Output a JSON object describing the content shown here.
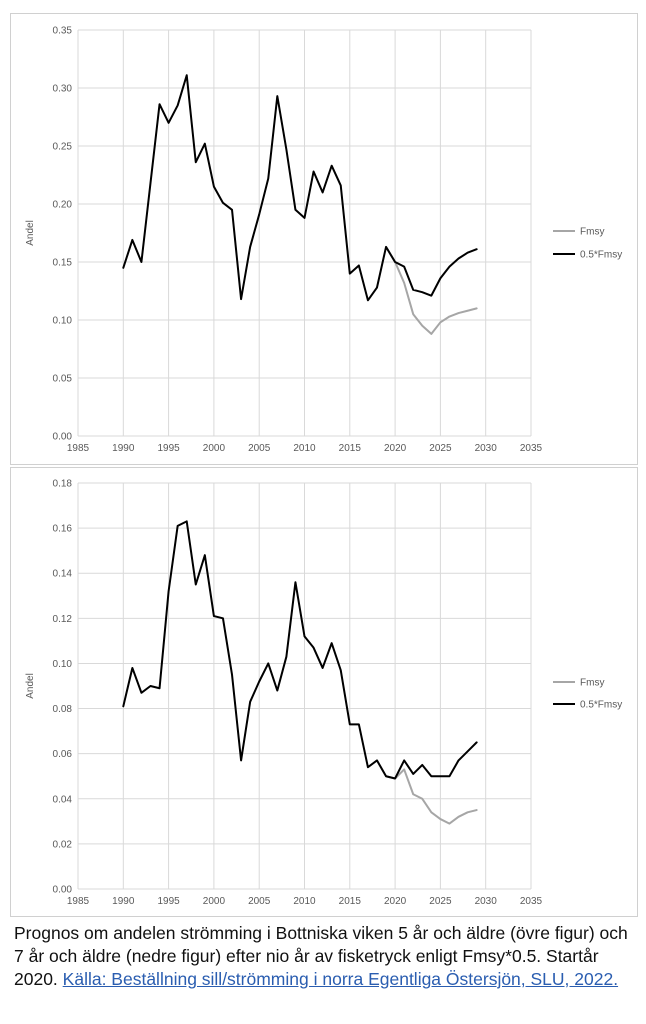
{
  "charts": [
    {
      "ylabel": "Andel",
      "ylim": [
        0,
        0.35
      ],
      "yticks": [
        "0.00",
        "0.05",
        "0.10",
        "0.15",
        "0.20",
        "0.25",
        "0.30",
        "0.35"
      ],
      "xlim": [
        1985,
        2035
      ],
      "xticks": [
        "1985",
        "1990",
        "1995",
        "2000",
        "2005",
        "2010",
        "2015",
        "2020",
        "2025",
        "2030",
        "2035"
      ],
      "legend": [
        "Fmsy",
        "0.5*Fmsy"
      ]
    },
    {
      "ylabel": "Andel",
      "ylim": [
        0,
        0.18
      ],
      "yticks": [
        "0.00",
        "0.02",
        "0.04",
        "0.06",
        "0.08",
        "0.10",
        "0.12",
        "0.14",
        "0.16",
        "0.18"
      ],
      "xlim": [
        1985,
        2035
      ],
      "xticks": [
        "1985",
        "1990",
        "1995",
        "2000",
        "2005",
        "2010",
        "2015",
        "2020",
        "2025",
        "2030",
        "2035"
      ],
      "legend": [
        "Fmsy",
        "0.5*Fmsy"
      ]
    }
  ],
  "chart_data": [
    {
      "type": "line",
      "ylabel": "Andel",
      "xlim": [
        1985,
        2035
      ],
      "ylim": [
        0,
        0.35
      ],
      "grid": true,
      "legend_position": "right",
      "series": [
        {
          "name": "Fmsy",
          "color": "#a6a6a6",
          "x": [
            2019,
            2020,
            2021,
            2022,
            2023,
            2024,
            2025,
            2026,
            2027,
            2028,
            2029
          ],
          "y": [
            0.163,
            0.15,
            0.132,
            0.105,
            0.095,
            0.088,
            0.098,
            0.103,
            0.106,
            0.108,
            0.11
          ]
        },
        {
          "name": "0.5*Fmsy",
          "color": "#000000",
          "x": [
            1990,
            1991,
            1992,
            1993,
            1994,
            1995,
            1996,
            1997,
            1998,
            1999,
            2000,
            2001,
            2002,
            2003,
            2004,
            2005,
            2006,
            2007,
            2008,
            2009,
            2010,
            2011,
            2012,
            2013,
            2014,
            2015,
            2016,
            2017,
            2018,
            2019,
            2020,
            2021,
            2022,
            2023,
            2024,
            2025,
            2026,
            2027,
            2028,
            2029
          ],
          "y": [
            0.145,
            0.169,
            0.15,
            0.218,
            0.286,
            0.27,
            0.285,
            0.311,
            0.236,
            0.252,
            0.215,
            0.201,
            0.195,
            0.118,
            0.163,
            0.191,
            0.222,
            0.293,
            0.247,
            0.195,
            0.188,
            0.228,
            0.21,
            0.233,
            0.216,
            0.14,
            0.147,
            0.117,
            0.128,
            0.163,
            0.15,
            0.146,
            0.126,
            0.124,
            0.121,
            0.136,
            0.146,
            0.153,
            0.158,
            0.161
          ]
        }
      ]
    },
    {
      "type": "line",
      "ylabel": "Andel",
      "xlim": [
        1985,
        2035
      ],
      "ylim": [
        0,
        0.18
      ],
      "grid": true,
      "legend_position": "right",
      "series": [
        {
          "name": "Fmsy",
          "color": "#a6a6a6",
          "x": [
            2019,
            2020,
            2021,
            2022,
            2023,
            2024,
            2025,
            2026,
            2027,
            2028,
            2029
          ],
          "y": [
            0.05,
            0.049,
            0.053,
            0.042,
            0.04,
            0.034,
            0.031,
            0.029,
            0.032,
            0.034,
            0.035
          ]
        },
        {
          "name": "0.5*Fmsy",
          "color": "#000000",
          "x": [
            1990,
            1991,
            1992,
            1993,
            1994,
            1995,
            1996,
            1997,
            1998,
            1999,
            2000,
            2001,
            2002,
            2003,
            2004,
            2005,
            2006,
            2007,
            2008,
            2009,
            2010,
            2011,
            2012,
            2013,
            2014,
            2015,
            2016,
            2017,
            2018,
            2019,
            2020,
            2021,
            2022,
            2023,
            2024,
            2025,
            2026,
            2027,
            2028,
            2029
          ],
          "y": [
            0.081,
            0.098,
            0.087,
            0.09,
            0.089,
            0.132,
            0.161,
            0.163,
            0.135,
            0.148,
            0.121,
            0.12,
            0.095,
            0.057,
            0.083,
            0.092,
            0.1,
            0.088,
            0.103,
            0.136,
            0.112,
            0.107,
            0.098,
            0.109,
            0.097,
            0.073,
            0.073,
            0.054,
            0.057,
            0.05,
            0.049,
            0.057,
            0.051,
            0.055,
            0.05,
            0.05,
            0.05,
            0.057,
            0.061,
            0.065
          ]
        }
      ]
    }
  ],
  "caption": {
    "text": "Prognos om andelen strömming i Bottniska viken 5 år och äldre (övre figur) och 7 år och äldre (nedre figur) efter nio år av fisketryck enligt Fmsy*0.5. Startår 2020.",
    "link_text": "Källa: Beställning sill/strömming i norra Egentliga Östersjön, SLU, 2022."
  }
}
